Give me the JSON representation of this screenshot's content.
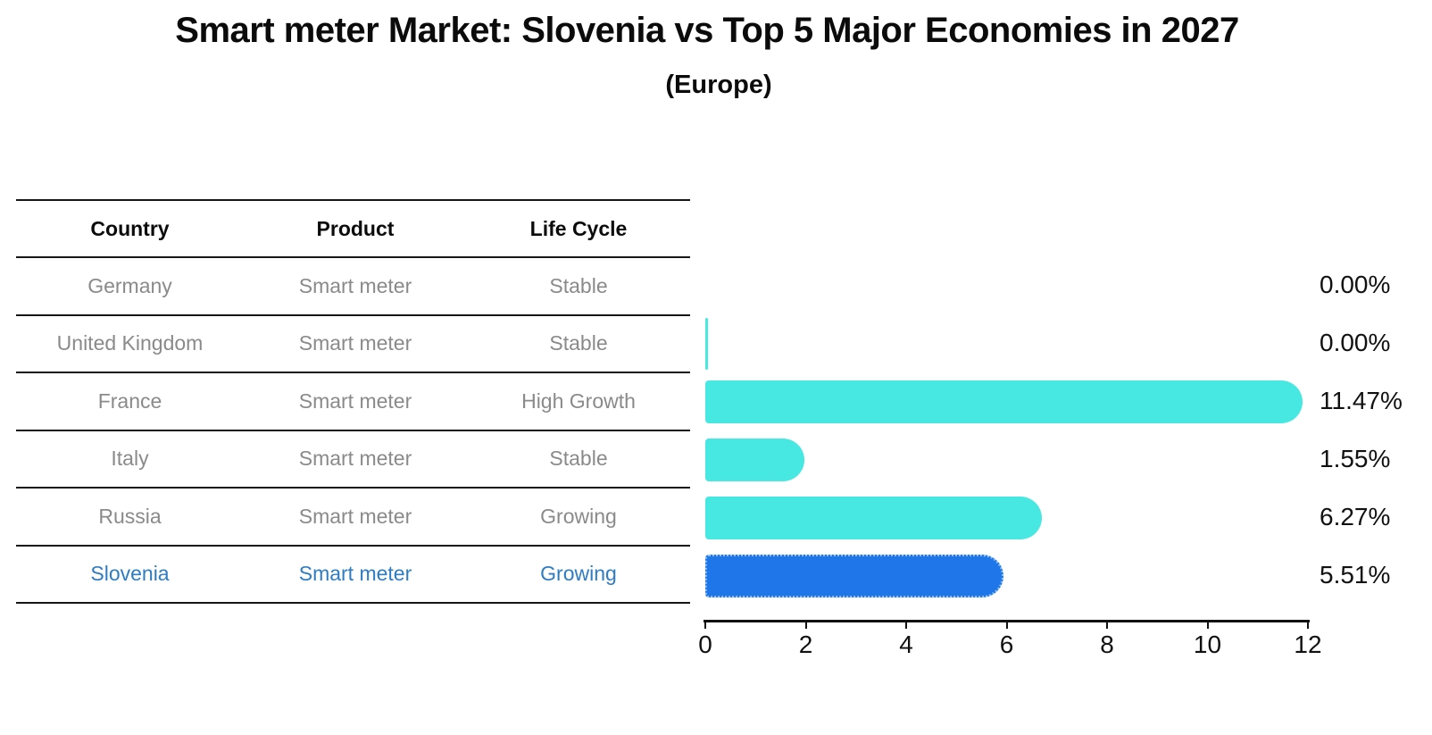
{
  "header": {
    "title": "Smart meter Market: Slovenia vs Top 5 Major Economies in 2027",
    "subtitle": "(Europe)"
  },
  "table": {
    "columns": [
      "Country",
      "Product",
      "Life Cycle"
    ],
    "rows": [
      {
        "country": "Germany",
        "product": "Smart meter",
        "life_cycle": "Stable",
        "highlight": false
      },
      {
        "country": "United Kingdom",
        "product": "Smart meter",
        "life_cycle": "Stable",
        "highlight": false
      },
      {
        "country": "France",
        "product": "Smart meter",
        "life_cycle": "High Growth",
        "highlight": false
      },
      {
        "country": "Italy",
        "product": "Smart meter",
        "life_cycle": "Stable",
        "highlight": false
      },
      {
        "country": "Russia",
        "product": "Smart meter",
        "life_cycle": "Growing",
        "highlight": false
      },
      {
        "country": "Slovenia",
        "product": "Smart meter",
        "life_cycle": "Growing",
        "highlight": true
      }
    ]
  },
  "chart_data": {
    "type": "bar",
    "orientation": "horizontal",
    "title": "Smart meter Market: Slovenia vs Top 5 Major Economies in 2027 (Europe)",
    "categories": [
      "Germany",
      "United Kingdom",
      "France",
      "Italy",
      "Russia",
      "Slovenia"
    ],
    "values": [
      0.0,
      0.0,
      11.47,
      1.55,
      6.27,
      5.51
    ],
    "bars": [
      {
        "value": 0.0,
        "label": "0.00%",
        "sliver": false,
        "highlight": false
      },
      {
        "value": 0.0,
        "label": "0.00%",
        "sliver": true,
        "highlight": false
      },
      {
        "value": 11.47,
        "label": "11.47%",
        "sliver": false,
        "highlight": false
      },
      {
        "value": 1.55,
        "label": "1.55%",
        "sliver": false,
        "highlight": false
      },
      {
        "value": 6.27,
        "label": "6.27%",
        "sliver": false,
        "highlight": false
      },
      {
        "value": 5.51,
        "label": "5.51%",
        "sliver": false,
        "highlight": true
      }
    ],
    "xlabel": "",
    "ylabel": "",
    "xlim": [
      0,
      12
    ],
    "x_ticks": [
      0,
      2,
      4,
      6,
      8,
      10,
      12
    ],
    "grid": false,
    "legend": "none",
    "bar_color": "#46e8e1",
    "highlight_color": "#1e76e8",
    "highlight_text_color": "#2e7cc3"
  }
}
